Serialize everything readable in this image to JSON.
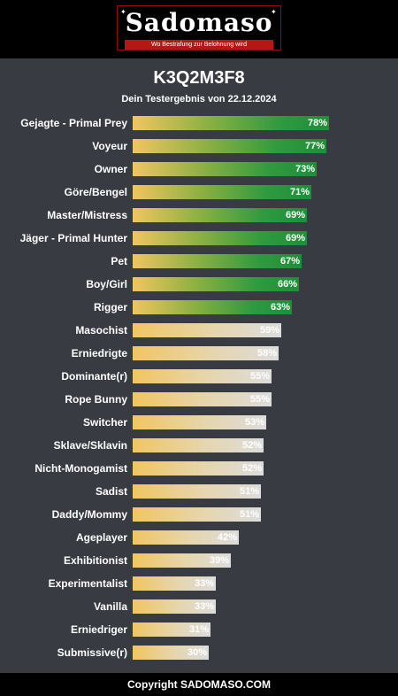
{
  "header": {
    "logo_text": "Sadomaso",
    "logo_tagline": "Wo Bestrafung zur Belohnung wird"
  },
  "result": {
    "title": "K3Q2M3F8",
    "subtitle": "Dein Testergebnis von 22.12.2024"
  },
  "colors": {
    "background": "#383c42",
    "header_background": "#000000",
    "bar_high_end": "#1f8e3a",
    "bar_low_end": "#dcdcdc",
    "bar_start": "#f1c561",
    "logo_accent": "#b51616"
  },
  "chart_data": {
    "type": "bar",
    "categories": [
      "Gejagte - Primal Prey",
      "Voyeur",
      "Owner",
      "Göre/Bengel",
      "Master/Mistress",
      "Jäger - Primal Hunter",
      "Pet",
      "Boy/Girl",
      "Rigger",
      "Masochist",
      "Erniedrigte",
      "Dominante(r)",
      "Rope Bunny",
      "Switcher",
      "Sklave/Sklavin",
      "Nicht-Monogamist",
      "Sadist",
      "Daddy/Mommy",
      "Ageplayer",
      "Exhibitionist",
      "Experimentalist",
      "Vanilla",
      "Erniedriger",
      "Submissive(r)"
    ],
    "values": [
      78,
      77,
      73,
      71,
      69,
      69,
      67,
      66,
      63,
      59,
      58,
      55,
      55,
      53,
      52,
      52,
      51,
      51,
      42,
      39,
      33,
      33,
      31,
      30
    ],
    "value_labels": [
      "78%",
      "77%",
      "73%",
      "71%",
      "69%",
      "69%",
      "67%",
      "66%",
      "63%",
      "59%",
      "58%",
      "55%",
      "55%",
      "53%",
      "52%",
      "52%",
      "51%",
      "51%",
      "42%",
      "39%",
      "33%",
      "33%",
      "31%",
      "30%"
    ],
    "xlim": [
      0,
      100
    ],
    "highlight_threshold": 60
  },
  "footer": {
    "copyright": "Copyright SADOMASO.COM"
  }
}
